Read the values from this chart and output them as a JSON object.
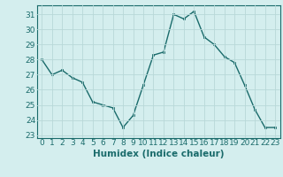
{
  "x": [
    0,
    1,
    2,
    3,
    4,
    5,
    6,
    7,
    8,
    9,
    10,
    11,
    12,
    13,
    14,
    15,
    16,
    17,
    18,
    19,
    20,
    21,
    22,
    23
  ],
  "y": [
    28.0,
    27.0,
    27.3,
    26.8,
    26.5,
    25.2,
    25.0,
    24.8,
    23.5,
    24.3,
    26.3,
    28.3,
    28.5,
    31.0,
    30.7,
    31.2,
    29.5,
    29.0,
    28.2,
    27.8,
    26.3,
    24.7,
    23.5,
    23.5
  ],
  "xlabel": "Humidex (Indice chaleur)",
  "ylim": [
    22.8,
    31.6
  ],
  "xlim": [
    -0.5,
    23.5
  ],
  "yticks": [
    23,
    24,
    25,
    26,
    27,
    28,
    29,
    30,
    31
  ],
  "xticks": [
    0,
    1,
    2,
    3,
    4,
    5,
    6,
    7,
    8,
    9,
    10,
    11,
    12,
    13,
    14,
    15,
    16,
    17,
    18,
    19,
    20,
    21,
    22,
    23
  ],
  "line_color": "#1a6b6b",
  "marker_color": "#1a6b6b",
  "bg_color": "#d4eeee",
  "grid_color": "#b8d8d8",
  "label_color": "#1a6b6b",
  "xlabel_fontsize": 7.5,
  "tick_fontsize": 6.5
}
